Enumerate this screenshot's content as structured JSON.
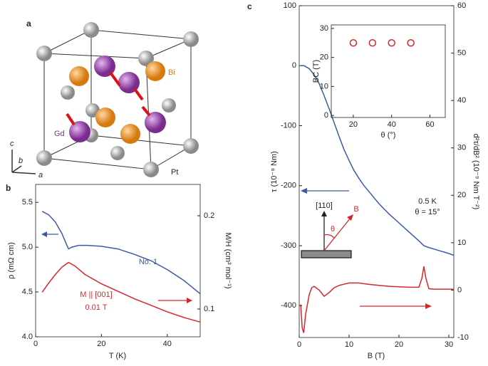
{
  "panel_labels": [
    "a",
    "b",
    "c"
  ],
  "structure": {
    "bi": "Bi",
    "gd": "Gd",
    "pt": "Pt",
    "axes": [
      "c",
      "b",
      "a"
    ]
  },
  "chart_data": [
    {
      "type": "line",
      "xlabel": "T (K)",
      "ylabel": "ρ (mΩ cm)",
      "y2label": "M/H (cm³ mol⁻¹)",
      "xlim": [
        0,
        50
      ],
      "xticks": [
        0,
        20,
        40
      ],
      "ylim": [
        4.0,
        5.7
      ],
      "yticks": [
        {
          "value": 4,
          "label": "4.0"
        },
        4.5,
        {
          "value": 5,
          "label": "5.0"
        },
        5.5
      ],
      "y2lim": [
        0.0702,
        0.2336
      ],
      "y2ticks": [
        0.1,
        0.2
      ],
      "series": [
        {
          "color": "#3b5ba5",
          "x": [
            2,
            4,
            6,
            8,
            9.5,
            10,
            11,
            13,
            16,
            20,
            25,
            30,
            35,
            40,
            45,
            50
          ],
          "values": [
            5.4,
            5.36,
            5.28,
            5.15,
            5.02,
            4.98,
            5.0,
            5.02,
            5.02,
            5.01,
            4.98,
            4.92,
            4.85,
            4.75,
            4.63,
            4.48
          ]
        },
        {
          "color": "#d7262b",
          "axis": "y2",
          "x": [
            2,
            4,
            6,
            8,
            10,
            12,
            15,
            20,
            25,
            30,
            35,
            40,
            45,
            50
          ],
          "values": [
            0.118,
            0.128,
            0.137,
            0.145,
            0.15,
            0.146,
            0.137,
            0.127,
            0.119,
            0.111,
            0.104,
            0.097,
            0.091,
            0.086
          ]
        }
      ],
      "annotations": [
        {
          "text": "No. 1",
          "color": "#3b5ba5"
        },
        {
          "text": "M || [001]",
          "color": "#d7262b"
        },
        {
          "text": "0.01 T",
          "color": "#d7262b"
        }
      ]
    },
    {
      "type": "line",
      "xlabel": "B (T)",
      "ylabel": "τ (10⁻⁹ Nm)",
      "y2label": "d²τ/dB² (10⁻⁹ Nm T⁻²)",
      "xlim": [
        0,
        31
      ],
      "xticks": [
        0,
        10,
        20,
        30
      ],
      "ylim": [
        -453,
        100
      ],
      "yticks": [
        -400,
        -300,
        -200,
        -100,
        0,
        100
      ],
      "y2lim": [
        -10,
        60
      ],
      "y2ticks": [
        -10,
        0,
        10,
        20,
        30,
        40,
        50,
        60
      ],
      "series": [
        {
          "color": "#3b5ba5",
          "x": [
            0,
            1,
            2,
            3,
            4,
            5,
            6,
            7,
            8,
            9,
            10,
            11,
            12,
            13,
            14,
            15,
            16,
            18,
            20,
            22,
            24,
            25,
            26,
            28,
            30,
            31
          ],
          "values": [
            0,
            0,
            -5,
            -15,
            -30,
            -50,
            -72,
            -95,
            -118,
            -140,
            -158,
            -175,
            -188,
            -200,
            -210,
            -220,
            -230,
            -247,
            -262,
            -277,
            -292,
            -300,
            -303,
            -308,
            -313,
            -316
          ]
        },
        {
          "color": "#d7262b",
          "axis": "y2",
          "x": [
            0.3,
            0.6,
            0.9,
            1.3,
            2,
            2.5,
            3,
            4,
            5,
            6,
            7,
            8,
            10,
            12,
            14,
            16,
            18,
            20,
            22,
            24,
            24.6,
            25,
            25.4,
            26,
            27,
            29,
            31
          ],
          "values": [
            -3,
            -8,
            -9,
            -5,
            -1,
            0.5,
            0.8,
            0,
            -1.3,
            -0.5,
            0.5,
            1,
            1.5,
            1.5,
            1.2,
            1.0,
            0.8,
            0.7,
            0.6,
            0.6,
            2.5,
            5,
            2.5,
            0.3,
            0.2,
            0.2,
            0.2
          ]
        }
      ],
      "annotations": [
        {
          "text": "0.5 K",
          "color": "#222"
        },
        {
          "text": "θ = 15°",
          "color": "#222"
        },
        {
          "text": "[110]",
          "color": "#222"
        },
        {
          "text": "B",
          "color": "#d7262b"
        },
        {
          "text": "θ",
          "color": "#d7262b"
        }
      ]
    },
    {
      "type": "scatter",
      "xlabel": "θ (°)",
      "ylabel": "BC (T)",
      "xlim": [
        8.5,
        68
      ],
      "xticks": [
        20,
        40,
        60
      ],
      "ylim": [
        -0.7,
        31.2
      ],
      "yticks": [
        0,
        10,
        20,
        30
      ],
      "series": [
        {
          "color": "#d7262b",
          "x": [
            20,
            30,
            40,
            50
          ],
          "values": [
            25,
            25,
            25,
            25
          ]
        }
      ]
    }
  ]
}
